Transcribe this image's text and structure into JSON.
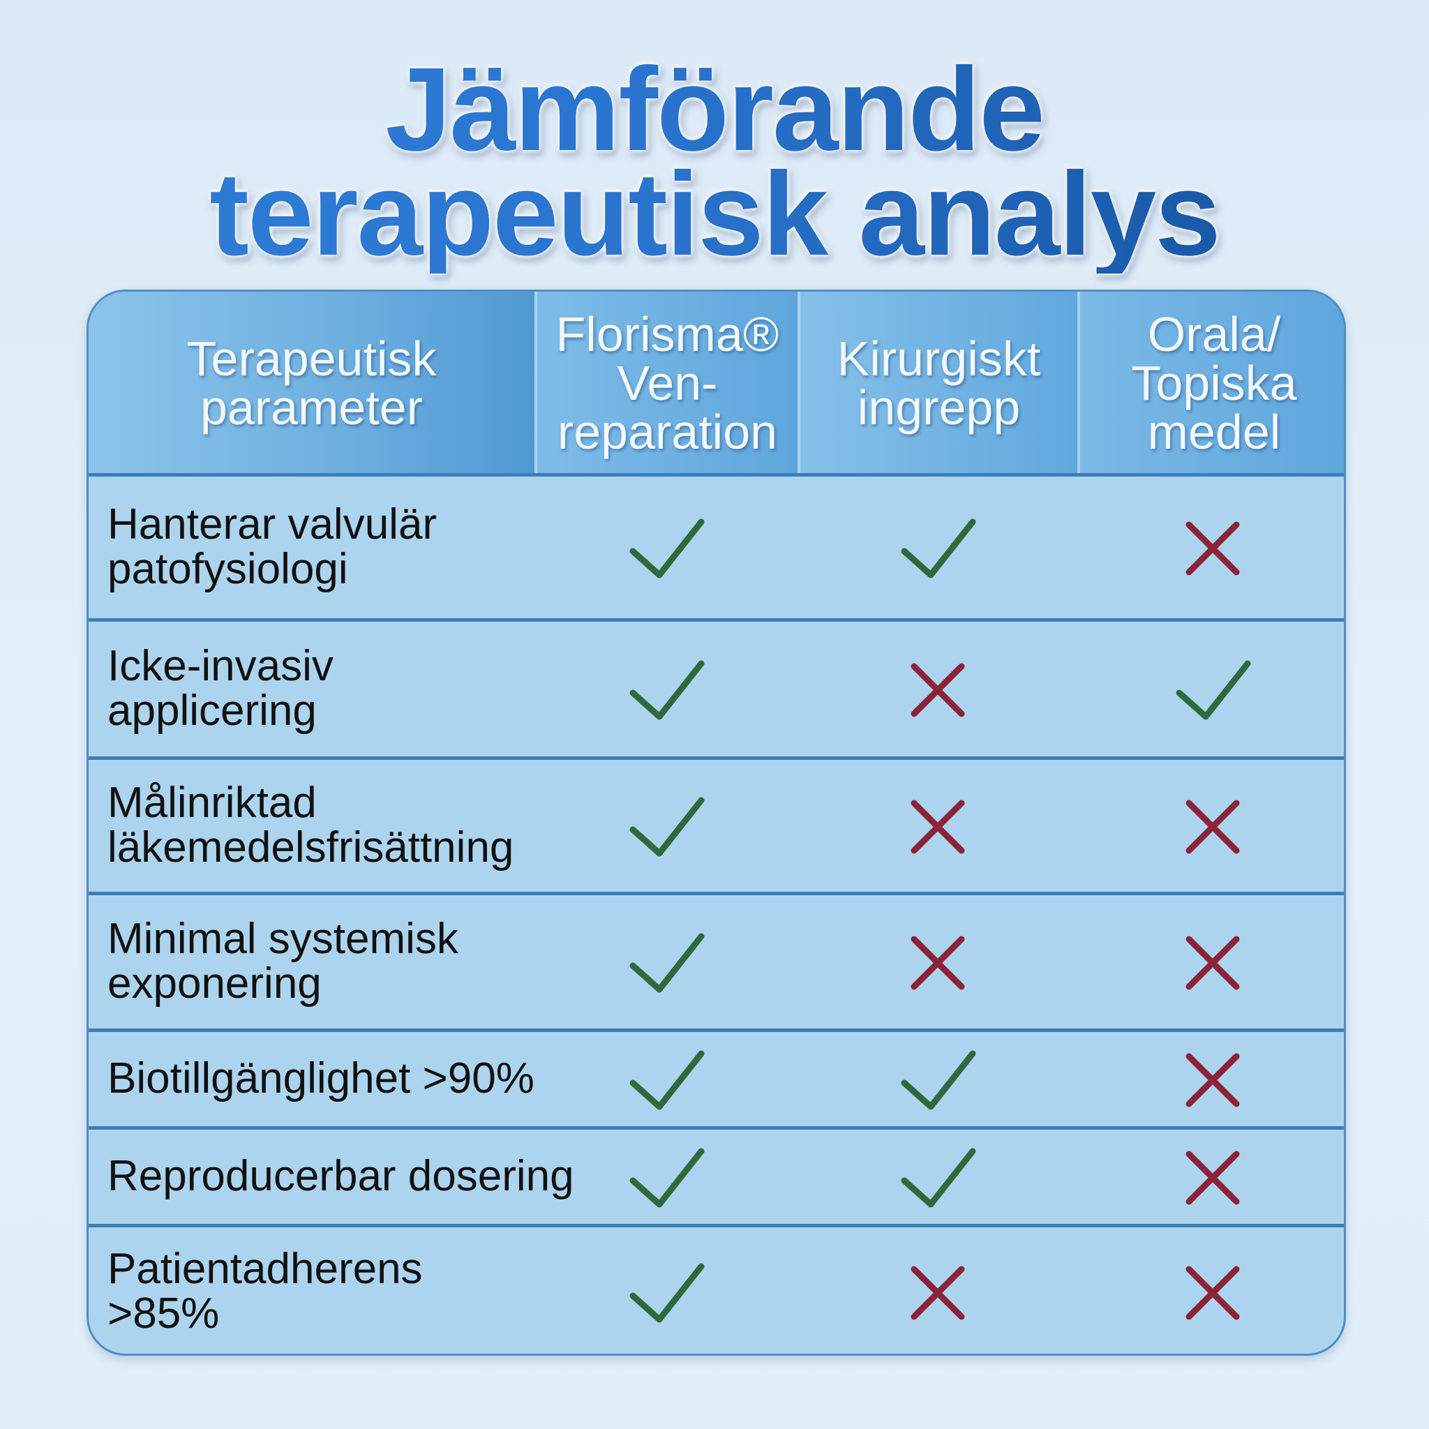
{
  "header": {
    "title_lines": [
      "Jämförande",
      "terapeutisk analys"
    ]
  },
  "table": {
    "columns": [
      "Terapeutisk parameter",
      "Florisma® Ven-reparation",
      "Kirurgiskt ingrepp",
      "Orala/ Topiska medel"
    ],
    "rows": [
      {
        "label_lines": [
          "Hanterar valvulär",
          "patofysiologi"
        ],
        "marks": [
          true,
          true,
          false
        ]
      },
      {
        "label_lines": [
          "Icke-invasiv",
          "applicering"
        ],
        "marks": [
          true,
          false,
          true
        ]
      },
      {
        "label_lines": [
          "Målinriktad",
          "läkemedelsfrisättning"
        ],
        "marks": [
          true,
          false,
          false
        ]
      },
      {
        "label_lines": [
          "Minimal systemisk",
          "exponering"
        ],
        "marks": [
          true,
          false,
          false
        ]
      },
      {
        "label_lines": [
          "Biotillgänglighet >90%"
        ],
        "marks": [
          true,
          true,
          false
        ]
      },
      {
        "label_lines": [
          "Reproducerbar dosering"
        ],
        "marks": [
          true,
          true,
          false
        ]
      },
      {
        "label_lines": [
          "Patientadherens",
          ">85%"
        ],
        "marks": [
          true,
          false,
          false
        ]
      }
    ]
  }
}
